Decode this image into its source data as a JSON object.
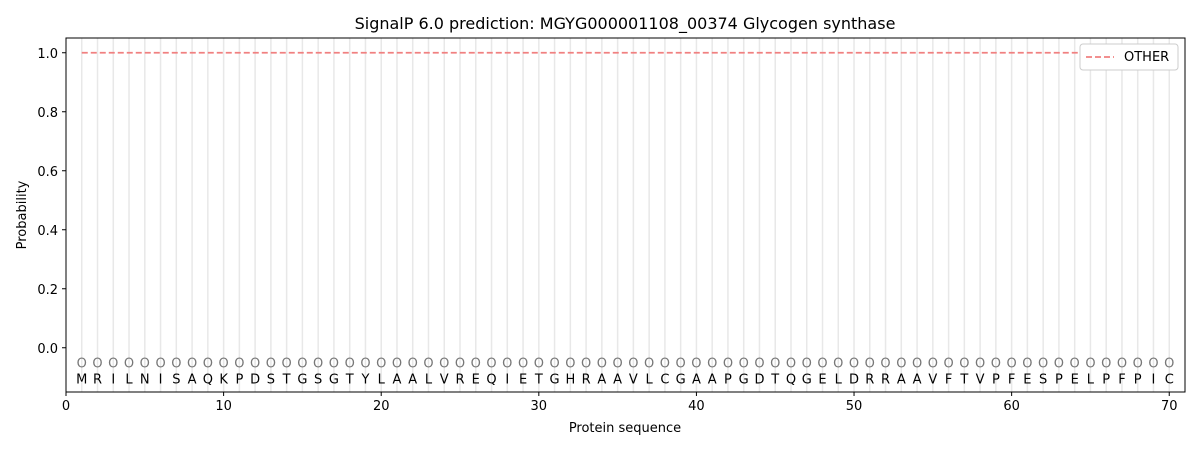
{
  "chart_data": {
    "type": "line",
    "title": "SignalP 6.0 prediction: MGYG000001108_00374 Glycogen synthase",
    "xlabel": "Protein sequence",
    "ylabel": "Probability",
    "xlim": [
      0,
      71
    ],
    "ylim": [
      -0.15,
      1.05
    ],
    "xticks": [
      0,
      10,
      20,
      30,
      40,
      50,
      60,
      70
    ],
    "yticks": [
      "0.0",
      "0.2",
      "0.4",
      "0.6",
      "0.8",
      "1.0"
    ],
    "grid": "vertical lines at each residue",
    "legend_position": "top-right",
    "sequence": [
      "M",
      "R",
      "I",
      "L",
      "N",
      "I",
      "S",
      "A",
      "Q",
      "K",
      "P",
      "D",
      "S",
      "T",
      "G",
      "S",
      "G",
      "T",
      "Y",
      "L",
      "A",
      "A",
      "L",
      "V",
      "R",
      "E",
      "Q",
      "I",
      "E",
      "T",
      "G",
      "H",
      "R",
      "A",
      "A",
      "V",
      "L",
      "C",
      "G",
      "A",
      "A",
      "P",
      "G",
      "D",
      "T",
      "Q",
      "G",
      "E",
      "L",
      "D",
      "R",
      "R",
      "A",
      "A",
      "V",
      "F",
      "T",
      "V",
      "P",
      "F",
      "E",
      "S",
      "P",
      "E",
      "L",
      "P",
      "F",
      "P",
      "I",
      "C"
    ],
    "predicted_label": "O",
    "series": [
      {
        "name": "OTHER",
        "color": "#f08080",
        "style": "dashed",
        "x_range": [
          1,
          70
        ],
        "value": 1.0
      }
    ]
  }
}
